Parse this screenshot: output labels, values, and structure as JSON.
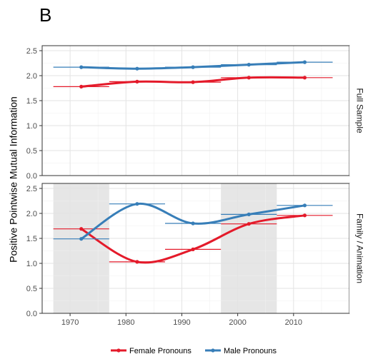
{
  "panel_letter": "B",
  "chart_data": {
    "type": "line",
    "ylabel": "Positive Pointwise Mutual Information",
    "xlabel": "",
    "xlim": [
      1965,
      2020
    ],
    "ylim": [
      0,
      2.6
    ],
    "x_ticks": [
      1970,
      1980,
      1990,
      2000,
      2010
    ],
    "x_tick_labels": [
      "1970",
      "1980",
      "1990",
      "2000",
      "2010"
    ],
    "y_ticks": [
      0.0,
      0.5,
      1.0,
      1.5,
      2.0,
      2.5
    ],
    "y_tick_labels": [
      "0.0",
      "0.5",
      "1.0",
      "1.5",
      "2.0",
      "2.5"
    ],
    "legend": {
      "placement": "bottom",
      "entries": [
        {
          "label": "Female Pronouns",
          "color": "#e41a2a"
        },
        {
          "label": "Male Pronouns",
          "color": "#377eb8"
        }
      ]
    },
    "colors": {
      "female": "#e41a2a",
      "male": "#377eb8",
      "shading": "#e6e6e6",
      "strip": "#ffffff"
    },
    "facets": [
      {
        "label": "Full Sample",
        "shaded_ranges": [],
        "series": [
          {
            "name": "Female Pronouns",
            "color_key": "female",
            "x": [
              1972,
              1982,
              1992,
              2002,
              2012
            ],
            "y": [
              1.78,
              1.88,
              1.87,
              1.96,
              1.96
            ],
            "x_range": [
              [
                1967,
                1977
              ],
              [
                1977,
                1987
              ],
              [
                1987,
                1997
              ],
              [
                1997,
                2007
              ],
              [
                2007,
                2017
              ]
            ]
          },
          {
            "name": "Male Pronouns",
            "color_key": "male",
            "x": [
              1972,
              1982,
              1992,
              2002,
              2012
            ],
            "y": [
              2.17,
              2.14,
              2.17,
              2.22,
              2.27
            ],
            "x_range": [
              [
                1967,
                1977
              ],
              [
                1977,
                1987
              ],
              [
                1987,
                1997
              ],
              [
                1997,
                2007
              ],
              [
                2007,
                2017
              ]
            ]
          }
        ]
      },
      {
        "label": "Family / Animation",
        "shaded_ranges": [
          [
            1967,
            1977
          ],
          [
            1997,
            2007
          ]
        ],
        "series": [
          {
            "name": "Female Pronouns",
            "color_key": "female",
            "x": [
              1972,
              1982,
              1992,
              2002,
              2012
            ],
            "y": [
              1.69,
              1.03,
              1.28,
              1.79,
              1.96
            ],
            "x_range": [
              [
                1967,
                1977
              ],
              [
                1977,
                1987
              ],
              [
                1987,
                1997
              ],
              [
                1997,
                2007
              ],
              [
                2007,
                2017
              ]
            ]
          },
          {
            "name": "Male Pronouns",
            "color_key": "male",
            "x": [
              1972,
              1982,
              1992,
              2002,
              2012
            ],
            "y": [
              1.49,
              2.19,
              1.8,
              1.98,
              2.16
            ],
            "x_range": [
              [
                1967,
                1977
              ],
              [
                1977,
                1987
              ],
              [
                1987,
                1997
              ],
              [
                1997,
                2007
              ],
              [
                2007,
                2017
              ]
            ]
          }
        ]
      }
    ]
  }
}
